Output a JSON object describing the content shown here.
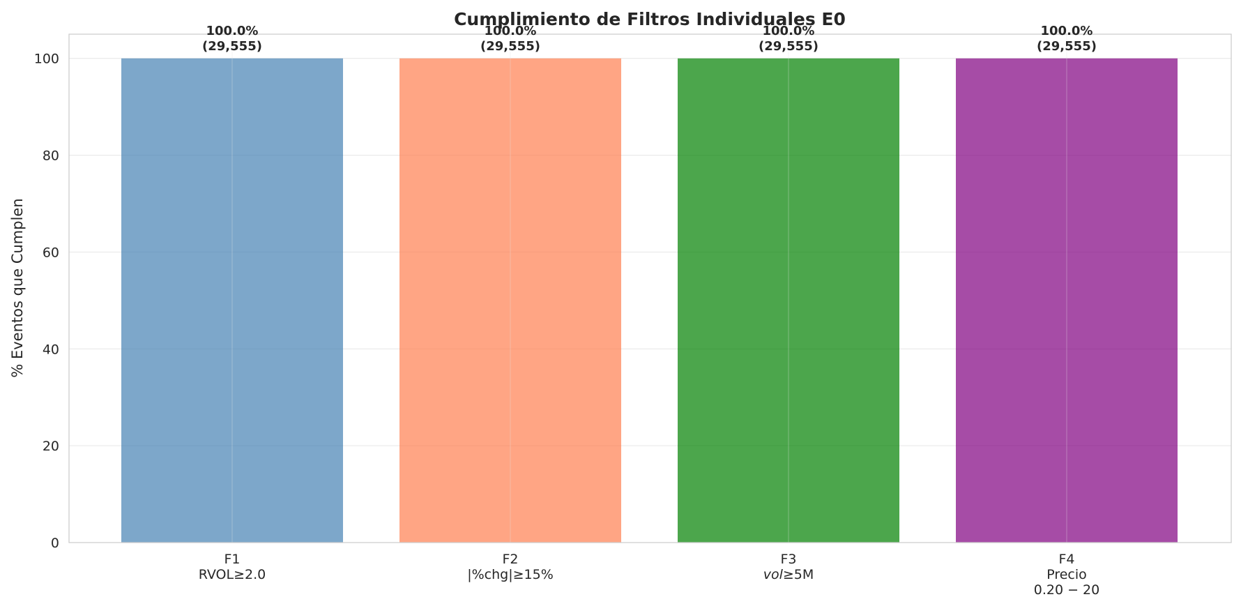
{
  "chart_data": {
    "type": "bar",
    "title": "Cumplimiento de Filtros Individuales E0",
    "xlabel": "",
    "ylabel": "% Eventos que Cumplen",
    "ylim": [
      0,
      105
    ],
    "yticks": [
      0,
      20,
      40,
      60,
      80,
      100
    ],
    "grid": true,
    "categories": [
      [
        "F1",
        "RVOL≥2.0"
      ],
      [
        "F2",
        "|%chg|≥15%"
      ],
      [
        "F3",
        "vol≥5M"
      ],
      [
        "F4",
        "Precio",
        "0.20 − 20"
      ]
    ],
    "values": [
      100.0,
      100.0,
      100.0,
      100.0
    ],
    "bar_labels": [
      [
        "100.0%",
        "(29,555)"
      ],
      [
        "100.0%",
        "(29,555)"
      ],
      [
        "100.0%",
        "(29,555)"
      ],
      [
        "100.0%",
        "(29,555)"
      ]
    ],
    "colors": [
      "#4682b4",
      "#ff7f50",
      "#008000",
      "#800080"
    ],
    "bar_opacity": 0.7
  }
}
